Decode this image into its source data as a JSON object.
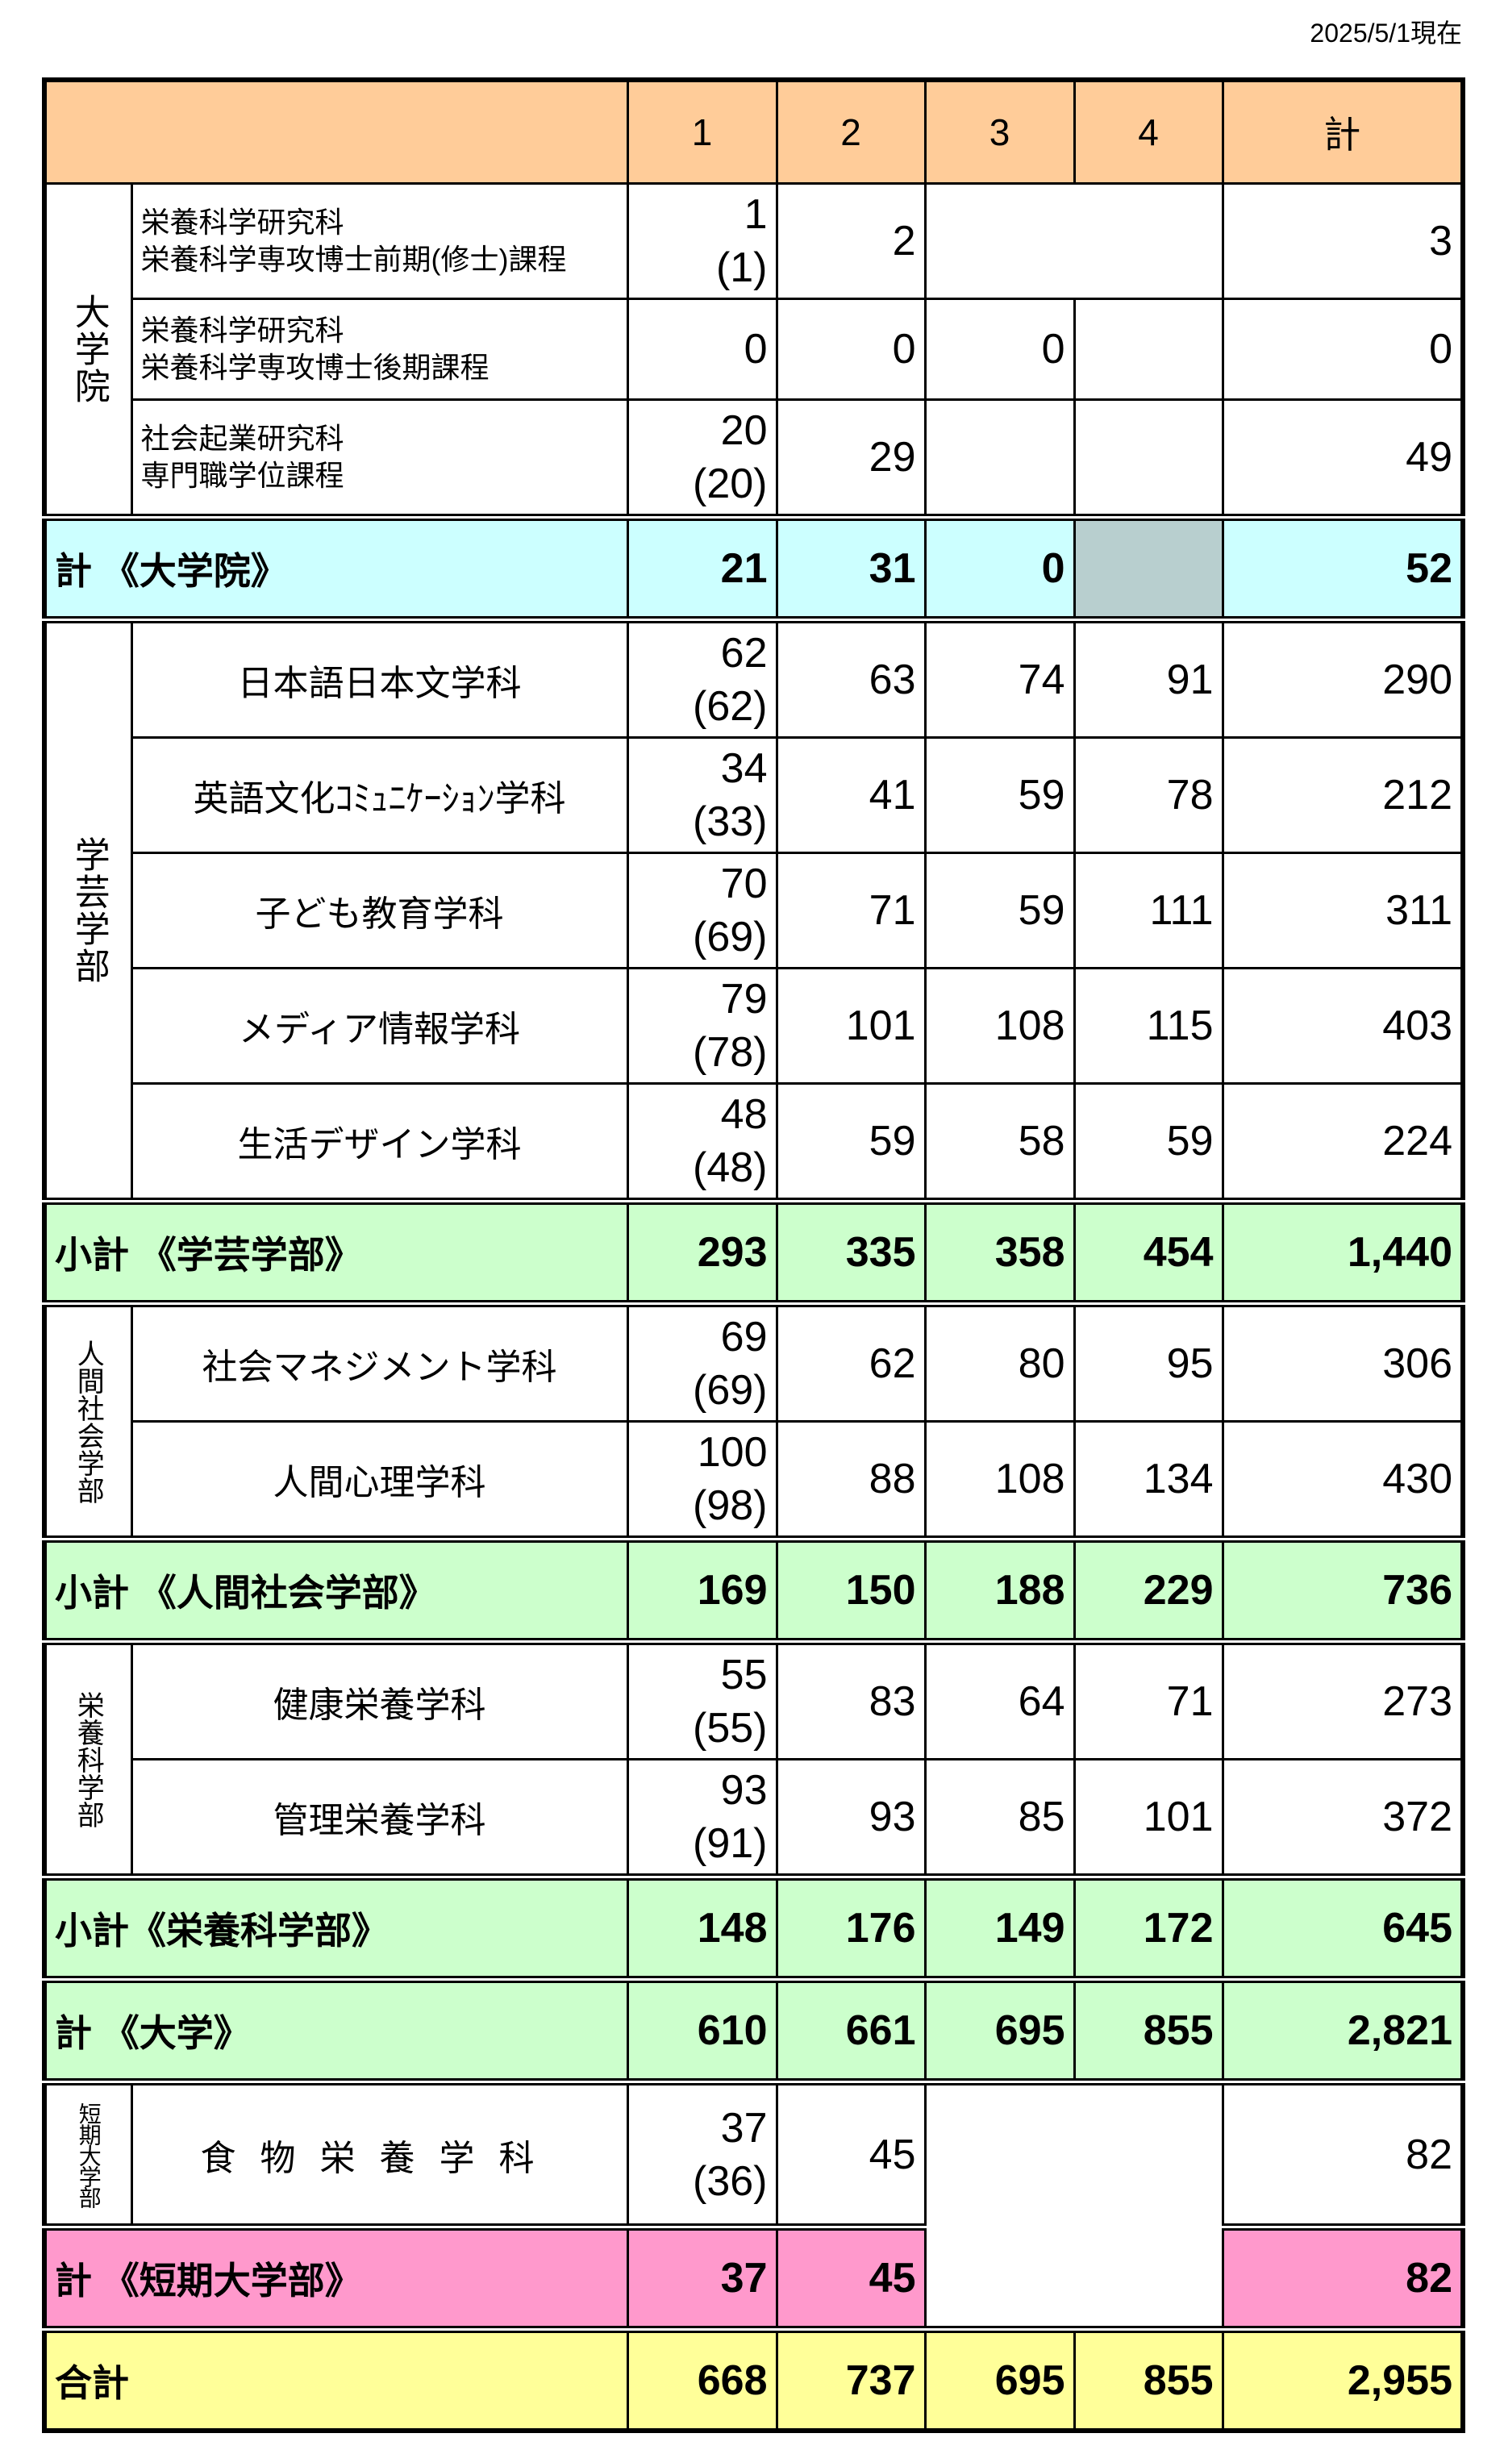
{
  "as_of": "2025/5/1現在",
  "header": {
    "cols": [
      "1",
      "2",
      "3",
      "4",
      "計"
    ]
  },
  "graduate": {
    "group_label": "大学院",
    "rows": [
      {
        "line1": "栄養科学研究科",
        "line2": "栄養科学専攻博士前期(修士)課程",
        "y1": "1",
        "y1_note": "(1)",
        "y2": "2",
        "total": "3"
      },
      {
        "line1": "栄養科学研究科",
        "line2": "栄養科学専攻博士後期課程",
        "y1": "0",
        "y2": "0",
        "y3": "0",
        "total": "0"
      },
      {
        "line1": "社会起業研究科",
        "line2": "専門職学位課程",
        "y1": "20",
        "y1_note": "(20)",
        "y2": "29",
        "total": "49"
      }
    ],
    "total": {
      "label": "計 《大学院》",
      "y1": "21",
      "y2": "31",
      "y3": "0",
      "total": "52"
    }
  },
  "gakugei": {
    "group_label": "学芸学部",
    "rows": [
      {
        "name": "日本語日本文学科",
        "y1": "62",
        "y1_note": "(62)",
        "y2": "63",
        "y3": "74",
        "y4": "91",
        "total": "290"
      },
      {
        "name": "英語文化ｺﾐｭﾆｹｰｼｮﾝ学科",
        "y1": "34",
        "y1_note": "(33)",
        "y2": "41",
        "y3": "59",
        "y4": "78",
        "total": "212"
      },
      {
        "name": "子ども教育学科",
        "y1": "70",
        "y1_note": "(69)",
        "y2": "71",
        "y3": "59",
        "y4": "111",
        "total": "311"
      },
      {
        "name": "メディア情報学科",
        "y1": "79",
        "y1_note": "(78)",
        "y2": "101",
        "y3": "108",
        "y4": "115",
        "total": "403"
      },
      {
        "name": "生活デザイン学科",
        "y1": "48",
        "y1_note": "(48)",
        "y2": "59",
        "y3": "58",
        "y4": "59",
        "total": "224"
      }
    ],
    "subtotal": {
      "label": "小計 《学芸学部》",
      "y1": "293",
      "y2": "335",
      "y3": "358",
      "y4": "454",
      "total": "1,440"
    }
  },
  "ningen": {
    "group_label": "人間社会学部",
    "rows": [
      {
        "name": "社会マネジメント学科",
        "y1": "69",
        "y1_note": "(69)",
        "y2": "62",
        "y3": "80",
        "y4": "95",
        "total": "306"
      },
      {
        "name": "人間心理学科",
        "y1": "100",
        "y1_note": "(98)",
        "y2": "88",
        "y3": "108",
        "y4": "134",
        "total": "430"
      }
    ],
    "subtotal": {
      "label": "小計 《人間社会学部》",
      "y1": "169",
      "y2": "150",
      "y3": "188",
      "y4": "229",
      "total": "736"
    }
  },
  "eiyo": {
    "group_label": "栄養科学部",
    "rows": [
      {
        "name": "健康栄養学科",
        "y1": "55",
        "y1_note": "(55)",
        "y2": "83",
        "y3": "64",
        "y4": "71",
        "total": "273"
      },
      {
        "name": "管理栄養学科",
        "y1": "93",
        "y1_note": "(91)",
        "y2": "93",
        "y3": "85",
        "y4": "101",
        "total": "372"
      }
    ],
    "subtotal": {
      "label": "小計《栄養科学部》",
      "y1": "148",
      "y2": "176",
      "y3": "149",
      "y4": "172",
      "total": "645"
    }
  },
  "university_total": {
    "label": "計 《大学》",
    "y1": "610",
    "y2": "661",
    "y3": "695",
    "y4": "855",
    "total": "2,821"
  },
  "junior": {
    "group_label": "短期大学部",
    "rows": [
      {
        "name": "食物栄養学科",
        "y1": "37",
        "y1_note": "(36)",
        "y2": "45",
        "total": "82"
      }
    ],
    "total": {
      "label": "計 《短期大学部》",
      "y1": "37",
      "y2": "45",
      "total": "82"
    }
  },
  "grand_total": {
    "label": "合計",
    "y1": "668",
    "y2": "737",
    "y3": "695",
    "y4": "855",
    "total": "2,955"
  },
  "colors": {
    "header": "#FFCC99",
    "grad_total": "#CCFFFF",
    "subtotal": "#CCFFCC",
    "junior_total": "#FF99CC",
    "grand_total": "#FFFF99",
    "shaded": "#CFCFCF"
  }
}
